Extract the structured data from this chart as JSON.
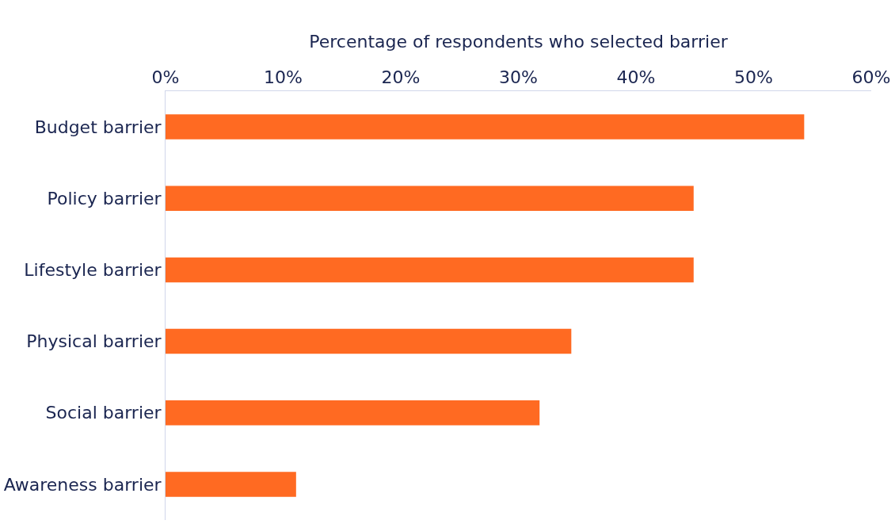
{
  "chart_data": {
    "type": "bar",
    "orientation": "horizontal",
    "xlabel": "Percentage of respondents who selected barrier",
    "categories": [
      "Budget barrier",
      "Policy barrier",
      "Lifestyle barrier",
      "Physical barrier",
      "Social barrier",
      "Awareness barrier"
    ],
    "values": [
      54.3,
      44.9,
      44.9,
      34.5,
      31.8,
      11.1
    ],
    "color": "#ff6a22",
    "xlim": [
      0,
      60
    ],
    "xticks": [
      {
        "value": 0,
        "label": "0%"
      },
      {
        "value": 10,
        "label": "10%"
      },
      {
        "value": 20,
        "label": "20%"
      },
      {
        "value": 30,
        "label": "30%"
      },
      {
        "value": 40,
        "label": "40%"
      },
      {
        "value": 50,
        "label": "50%"
      },
      {
        "value": 60,
        "label": "60%"
      }
    ],
    "legend": false
  }
}
